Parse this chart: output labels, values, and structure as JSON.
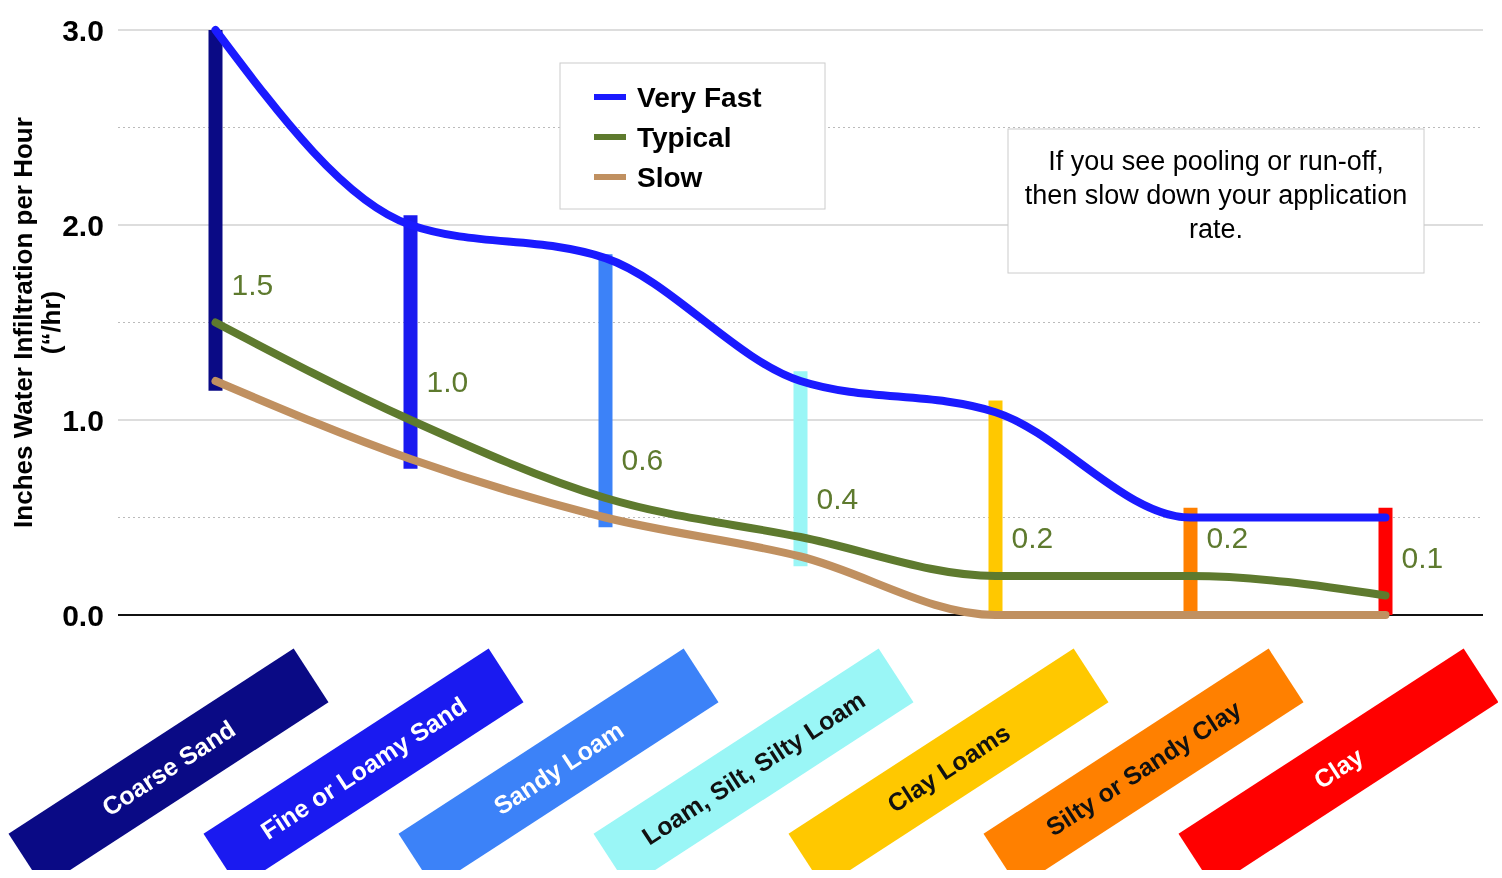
{
  "chart_data": {
    "type": "line",
    "ylabel": "Inches Water Infiltration per Hour (“/hr)",
    "categories": [
      "Coarse Sand",
      "Fine or Loamy Sand",
      "Sandy Loam",
      "Loam, Silt, Silty Loam",
      "Clay Loams",
      "Silty or Sandy Clay",
      "Clay"
    ],
    "ylim": [
      0,
      3
    ],
    "yticks": [
      {
        "value": 0,
        "label": "0.0"
      },
      {
        "value": 0.5,
        "label": null
      },
      {
        "value": 1,
        "label": "1.0"
      },
      {
        "value": 1.5,
        "label": null
      },
      {
        "value": 2,
        "label": "2.0"
      },
      {
        "value": 2.5,
        "label": null
      },
      {
        "value": 3,
        "label": "3.0"
      }
    ],
    "grid": "y",
    "legend": "top",
    "line_style": "solid",
    "marker": "none",
    "series": [
      {
        "type": "bar",
        "colors": [
          "#0a0a85",
          "#1a1af0",
          "#3c82f8",
          "#9af6f6",
          "#ffc800",
          "#ff8000",
          "#ff0000"
        ],
        "base": [
          1.15,
          0.75,
          0.45,
          0.25,
          0,
          0,
          0
        ],
        "values": [
          1.85,
          1.3,
          1.4,
          1.0,
          1.1,
          0.55,
          0.55
        ]
      },
      {
        "name": "Very Fast",
        "color": "#1a1aff",
        "values": [
          3.0,
          2.0,
          1.83,
          1.2,
          1.04,
          0.5,
          0.5
        ]
      },
      {
        "name": "Typical",
        "color": "#5e7a2e",
        "values": [
          1.5,
          1.0,
          0.6,
          0.4,
          0.2,
          0.2,
          0.1
        ],
        "value_labels": [
          "1.5",
          "1.0",
          "0.6",
          "0.4",
          "0.2",
          "0.2",
          "0.1"
        ]
      },
      {
        "name": "Slow",
        "color": "#c09060",
        "values": [
          1.2,
          0.8,
          0.5,
          0.3,
          0,
          0,
          0
        ]
      }
    ],
    "annotations": [
      "If you see pooling or run-off, then slow down your application rate."
    ]
  }
}
